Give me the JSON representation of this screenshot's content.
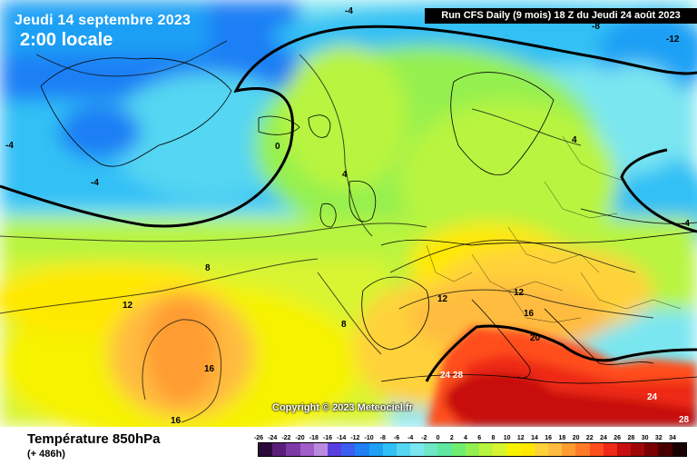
{
  "header": {
    "date_title": "Jeudi 14 septembre 2023",
    "time_title": "2:00 locale",
    "run_info": "Run CFS Daily (9 mois) 18 Z du Jeudi 24 août 2023"
  },
  "map": {
    "copyright": "Copyright © 2023 Meteociel.fr",
    "contour_labels": [
      "-4",
      "-8",
      "-12",
      "-4",
      "-4",
      "0",
      "4",
      "4",
      "-4",
      "8",
      "12",
      "12",
      "12",
      "8",
      "16",
      "16",
      "16",
      "20",
      "24 28",
      "24",
      "28"
    ]
  },
  "footer": {
    "variable": "Température 850hPa",
    "lead_time": "(+ 486h)"
  },
  "legend": {
    "ticks": [
      "-26",
      "-24",
      "-22",
      "-20",
      "-18",
      "-16",
      "-14",
      "-12",
      "-10",
      "-8",
      "-6",
      "-4",
      "-2",
      "0",
      "2",
      "4",
      "6",
      "8",
      "10",
      "12",
      "14",
      "16",
      "18",
      "20",
      "22",
      "24",
      "26",
      "28",
      "30",
      "32",
      "34"
    ],
    "colors": [
      "#2a0b3a",
      "#5a1f7a",
      "#7e3aa8",
      "#a05fc8",
      "#b98ae0",
      "#5a3fe0",
      "#3a5ff0",
      "#1f7ff5",
      "#1fa0f5",
      "#30c0f5",
      "#55d6f2",
      "#7ae6f0",
      "#6fe6c6",
      "#5ee8a0",
      "#70ee70",
      "#94f050",
      "#b8f440",
      "#d8f430",
      "#f6f200",
      "#ffe800",
      "#ffd23a",
      "#ffbc40",
      "#ff9c30",
      "#ff7a26",
      "#ff4e1e",
      "#ee2a18",
      "#c81010",
      "#a00808",
      "#7a0000",
      "#4a0000",
      "#1a0000"
    ]
  }
}
